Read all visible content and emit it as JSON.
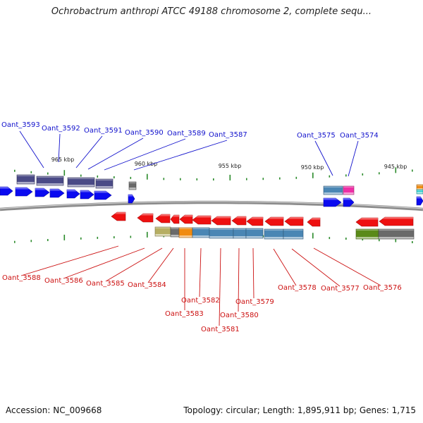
{
  "title": "Ochrobactrum anthropi ATCC 49188 chromosome 2, complete sequ...",
  "footer": {
    "accession": "Accession: NC_009668",
    "topology": "Topology: circular; Length: 1,895,911 bp; Genes: 1,715"
  },
  "scale_labels": [
    "965 kbp",
    "960 kbp",
    "955 kbp",
    "950 kbp",
    "945 kbp"
  ],
  "colors": {
    "top_label": "#1010cc",
    "bottom_label": "#cc1010",
    "forward_gene": "#0a0af0",
    "reverse_gene": "#ee1010",
    "tick": "#2a8a2a",
    "backbone": "#8c8c8c",
    "cog_purple": "#4a4a86",
    "cog_steelblue": "#4a86b4",
    "cog_magenta": "#ee2fa6",
    "cog_olive": "#b6ae62",
    "cog_orange": "#f08a10",
    "cog_green": "#5a8a18",
    "cog_gray": "#6a6a6a",
    "cog_cyan": "#22cccc"
  },
  "top_genes": [
    "Oant_3593",
    "Oant_3592",
    "Oant_3591",
    "Oant_3590",
    "Oant_3589",
    "Oant_3587",
    "Oant_3575",
    "Oant_3574"
  ],
  "bottom_genes": [
    "Oant_3588",
    "Oant_3586",
    "Oant_3585",
    "Oant_3584",
    "Oant_3583",
    "Oant_3582",
    "Oant_3581",
    "Oant_3580",
    "Oant_3579",
    "Oant_3578",
    "Oant_3577",
    "Oant_3576"
  ]
}
